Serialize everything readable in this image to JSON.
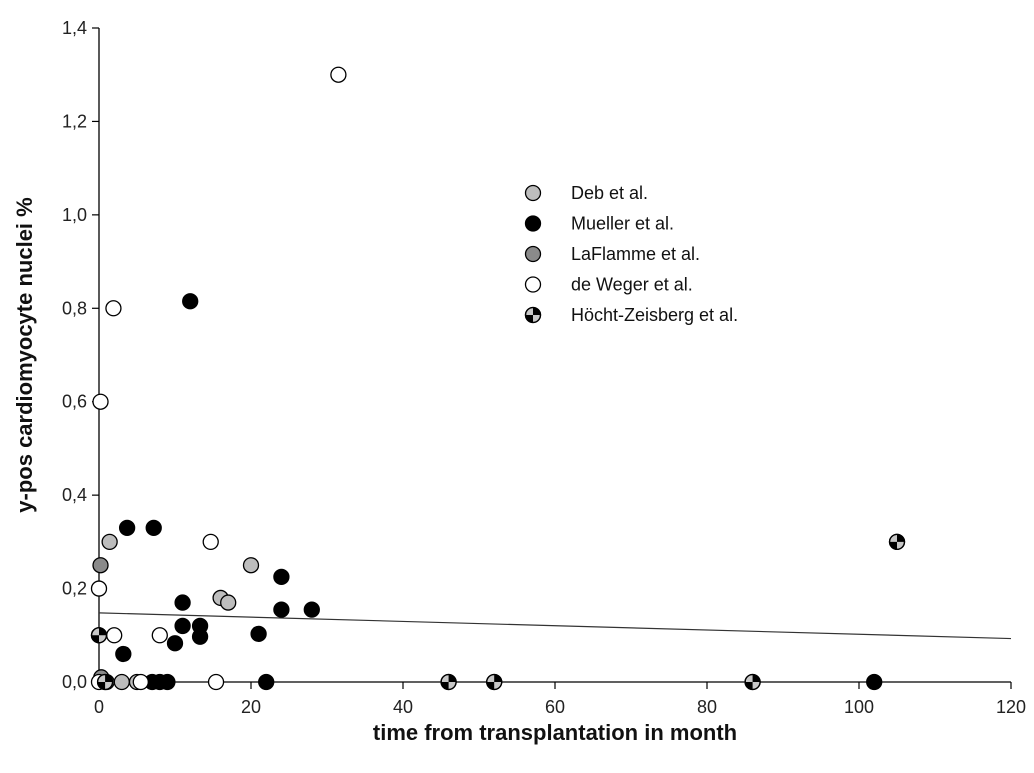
{
  "chart_data": {
    "type": "scatter",
    "title": "",
    "xlabel": "time from transplantation in month",
    "ylabel": "y-pos cardiomyocyte nuclei %",
    "xlim": [
      0,
      120
    ],
    "ylim": [
      0,
      1.4
    ],
    "x_ticks": [
      {
        "v": 0,
        "label": "0"
      },
      {
        "v": 20,
        "label": "20"
      },
      {
        "v": 40,
        "label": "40"
      },
      {
        "v": 60,
        "label": "60"
      },
      {
        "v": 80,
        "label": "80"
      },
      {
        "v": 100,
        "label": "100"
      },
      {
        "v": 120,
        "label": "120"
      }
    ],
    "y_ticks": [
      {
        "v": 0,
        "label": "0,0"
      },
      {
        "v": 0.2,
        "label": "0,2"
      },
      {
        "v": 0.4,
        "label": "0,4"
      },
      {
        "v": 0.6,
        "label": "0,6"
      },
      {
        "v": 0.8,
        "label": "0,8"
      },
      {
        "v": 1.0,
        "label": "1,0"
      },
      {
        "v": 1.2,
        "label": "1,2"
      },
      {
        "v": 1.4,
        "label": "1,4"
      }
    ],
    "grid": false,
    "legend_position": "upper-middle-right",
    "series": [
      {
        "name": "Deb et al.",
        "marker": "light-gray",
        "color": "#bdbdbd",
        "points": [
          [
            1.4,
            0.3
          ],
          [
            20,
            0.25
          ],
          [
            16,
            0.18
          ],
          [
            17,
            0.17
          ],
          [
            3,
            0.0
          ],
          [
            5,
            0.0
          ],
          [
            1,
            0.0
          ]
        ]
      },
      {
        "name": "Mueller et al.",
        "marker": "black",
        "color": "#000000",
        "points": [
          [
            12,
            0.815
          ],
          [
            3.7,
            0.33
          ],
          [
            7.2,
            0.33
          ],
          [
            24,
            0.225
          ],
          [
            11,
            0.17
          ],
          [
            24,
            0.155
          ],
          [
            28,
            0.155
          ],
          [
            11,
            0.12
          ],
          [
            13.3,
            0.12
          ],
          [
            13.3,
            0.097
          ],
          [
            10,
            0.083
          ],
          [
            21,
            0.103
          ],
          [
            3.2,
            0.06
          ],
          [
            7,
            0.0
          ],
          [
            8,
            0.0
          ],
          [
            9,
            0.0
          ],
          [
            22,
            0.0
          ],
          [
            102,
            0.0
          ]
        ]
      },
      {
        "name": "LaFlamme et al.",
        "marker": "dark-gray",
        "color": "#8a8a8a",
        "points": [
          [
            0.2,
            0.25
          ],
          [
            0.3,
            0.01
          ]
        ]
      },
      {
        "name": "de Weger et al.",
        "marker": "white",
        "color": "#ffffff",
        "points": [
          [
            31.5,
            1.3
          ],
          [
            1.9,
            0.8
          ],
          [
            0.2,
            0.6
          ],
          [
            14.7,
            0.3
          ],
          [
            0,
            0.2
          ],
          [
            2,
            0.1
          ],
          [
            8,
            0.1
          ],
          [
            15.4,
            0.0
          ],
          [
            5.5,
            0.0
          ],
          [
            0,
            0.0
          ]
        ]
      },
      {
        "name": "Höcht-Zeisberg et al.",
        "marker": "quartered",
        "color": "#000000",
        "points": [
          [
            105,
            0.3
          ],
          [
            0,
            0.1
          ],
          [
            0.8,
            0.0
          ],
          [
            46,
            0.0
          ],
          [
            52,
            0.0
          ],
          [
            86,
            0.0
          ]
        ]
      }
    ],
    "trend_line": {
      "x": [
        0,
        120
      ],
      "y": [
        0.148,
        0.093
      ]
    }
  }
}
